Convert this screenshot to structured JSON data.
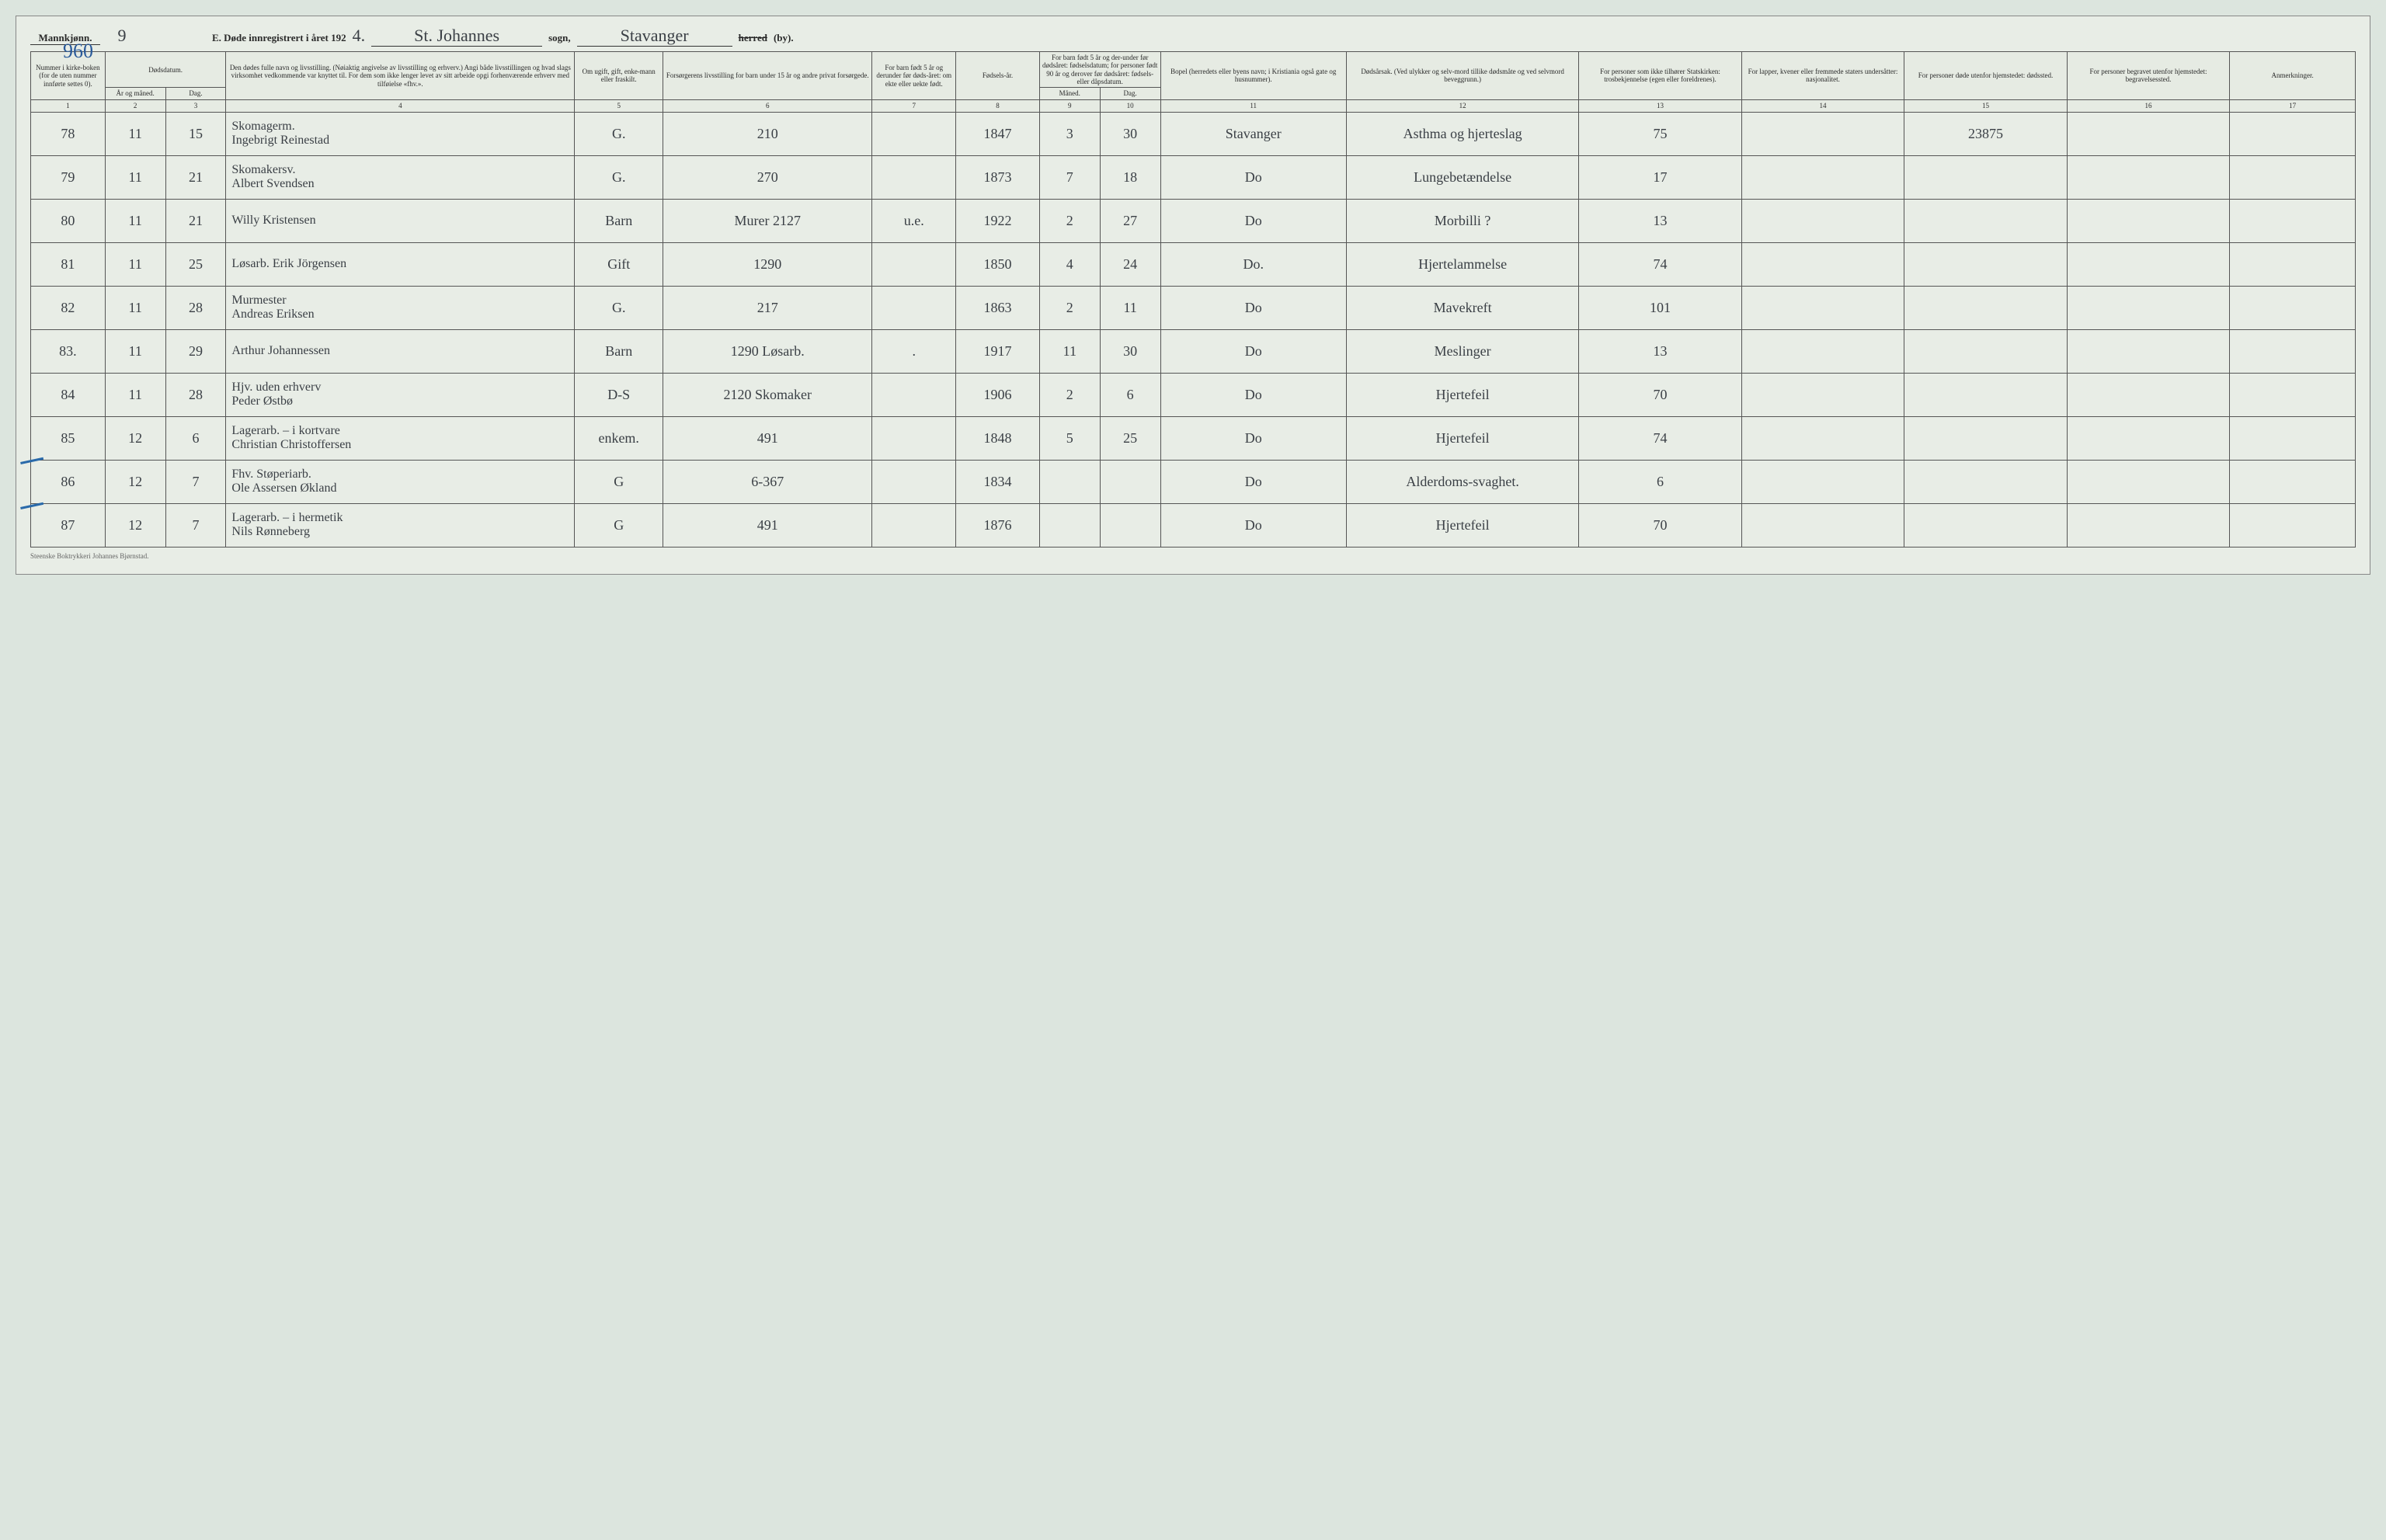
{
  "header": {
    "gender_label": "Mannkjønn.",
    "sheet_number": "9",
    "page_number": "960",
    "title_prefix": "E.  Døde innregistrert i året 192",
    "year_suffix": "4.",
    "parish_label_after": "sogn,",
    "parish": "St. Johannes",
    "district": "Stavanger",
    "herred_label": "herred",
    "by_label": "(by)."
  },
  "columns": {
    "c1": "Nummer i kirke-boken (for de uten nummer innførte settes 0).",
    "c2a": "Dødsdatum.",
    "c2_year": "År og måned.",
    "c2_day": "Dag.",
    "c4": "Den dødes fulle navn og livsstilling. (Nøiaktig angivelse av livsstilling og erhverv.) Angi både livsstillingen og hvad slags virksomhet vedkommende var knyttet til. For dem som ikke lenger levet av sitt arbeide opgi forhenværende erhverv med tilføielse «fhv.».",
    "c5": "Om ugift, gift, enke-mann eller fraskilt.",
    "c6": "Forsørgerens livsstilling for barn under 15 år og andre privat forsørgede.",
    "c7": "For barn født 5 år og derunder før døds-året: om ekte eller uekte født.",
    "c8": "Fødsels-år.",
    "c9_10": "For barn født 5 år og der-under før dødsåret: fødselsdatum; for personer født 90 år og derover før dødsåret: fødsels- eller dåpsdatum.",
    "c9": "Måned.",
    "c10": "Dag.",
    "c11": "Bopel (herredets eller byens navn; i Kristiania også gate og husnummer).",
    "c12": "Dødsårsak. (Ved ulykker og selv-mord tillike dødsmåte og ved selvmord beveggrunn.)",
    "c13": "For personer som ikke tilhører Statskirken: trosbekjennelse (egen eller foreldrenes).",
    "c14": "For lapper, kvener eller fremmede staters undersåtter: nasjonalitet.",
    "c15": "For personer døde utenfor hjemstedet: dødssted.",
    "c16": "For personer begravet utenfor hjemstedet: begravelsessted.",
    "c17": "Anmerkninger."
  },
  "colnums": [
    "1",
    "2",
    "3",
    "4",
    "5",
    "6",
    "7",
    "8",
    "9",
    "10",
    "11",
    "12",
    "13",
    "14",
    "15",
    "16",
    "17"
  ],
  "rows": [
    {
      "no": "78",
      "mon": "11",
      "day": "15",
      "name": "Skomagerm.\nIngebrigt Reinestad",
      "status": "G.",
      "provider": "210",
      "legit": "",
      "byear": "1847",
      "bmon": "3",
      "bday": "30",
      "place": "Stavanger",
      "cause": "Asthma og hjerteslag",
      "col13": "75",
      "col14": "",
      "col15": "23875",
      "col16": "",
      "col17": ""
    },
    {
      "no": "79",
      "mon": "11",
      "day": "21",
      "name": "Skomakersv.\nAlbert Svendsen",
      "status": "G.",
      "provider": "270",
      "legit": "",
      "byear": "1873",
      "bmon": "7",
      "bday": "18",
      "place": "Do",
      "cause": "Lungebetændelse",
      "col13": "17",
      "col14": "",
      "col15": "",
      "col16": "",
      "col17": ""
    },
    {
      "no": "80",
      "mon": "11",
      "day": "21",
      "name": "Willy Kristensen",
      "status": "Barn",
      "provider": "Murer  2127",
      "legit": "u.e.",
      "byear": "1922",
      "bmon": "2",
      "bday": "27",
      "place": "Do",
      "cause": "Morbilli ?",
      "col13": "13",
      "col14": "",
      "col15": "",
      "col16": "",
      "col17": ""
    },
    {
      "no": "81",
      "mon": "11",
      "day": "25",
      "name": "Løsarb. Erik Jörgensen",
      "status": "Gift",
      "provider": "1290",
      "legit": "",
      "byear": "1850",
      "bmon": "4",
      "bday": "24",
      "place": "Do.",
      "cause": "Hjertelammelse",
      "col13": "74",
      "col14": "",
      "col15": "",
      "col16": "",
      "col17": ""
    },
    {
      "no": "82",
      "mon": "11",
      "day": "28",
      "name": "Murmester\nAndreas Eriksen",
      "status": "G.",
      "provider": "217",
      "legit": "",
      "byear": "1863",
      "bmon": "2",
      "bday": "11",
      "place": "Do",
      "cause": "Mavekreft",
      "col13": "101",
      "col14": "",
      "col15": "",
      "col16": "",
      "col17": ""
    },
    {
      "no": "83.",
      "mon": "11",
      "day": "29",
      "name": "Arthur Johannessen",
      "status": "Barn",
      "provider": "1290 Løsarb.",
      "legit": ".",
      "byear": "1917",
      "bmon": "11",
      "bday": "30",
      "place": "Do",
      "cause": "Meslinger",
      "col13": "13",
      "col14": "",
      "col15": "",
      "col16": "",
      "col17": ""
    },
    {
      "no": "84",
      "mon": "11",
      "day": "28",
      "name": "Hjv. uden erhverv\nPeder Østbø",
      "status": "D-S",
      "provider": "2120 Skomaker",
      "legit": "",
      "byear": "1906",
      "bmon": "2",
      "bday": "6",
      "place": "Do",
      "cause": "Hjertefeil",
      "col13": "70",
      "col14": "",
      "col15": "",
      "col16": "",
      "col17": ""
    },
    {
      "no": "85",
      "mon": "12",
      "day": "6",
      "name": "Lagerarb. – i kortvare\nChristian Christoffersen",
      "status": "enkem.",
      "provider": "491",
      "legit": "",
      "byear": "1848",
      "bmon": "5",
      "bday": "25",
      "place": "Do",
      "cause": "Hjertefeil",
      "col13": "74",
      "col14": "",
      "col15": "",
      "col16": "",
      "col17": ""
    },
    {
      "no": "86",
      "mon": "12",
      "day": "7",
      "name": "Fhv. Støperiarb.\nOle Assersen Økland",
      "status": "G",
      "provider": "6-367",
      "legit": "",
      "byear": "1834",
      "bmon": "",
      "bday": "",
      "place": "Do",
      "cause": "Alderdoms-svaghet.",
      "col13": "6",
      "col14": "",
      "col15": "",
      "col16": "",
      "col17": ""
    },
    {
      "no": "87",
      "mon": "12",
      "day": "7",
      "name": "Lagerarb. – i hermetik\nNils Rønneberg",
      "status": "G",
      "provider": "491",
      "legit": "",
      "byear": "1876",
      "bmon": "",
      "bday": "",
      "place": "Do",
      "cause": "Hjertefeil",
      "col13": "70",
      "col14": "",
      "col15": "",
      "col16": "",
      "col17": ""
    }
  ],
  "footer": "Steenske Boktrykkeri Johannes Bjørnstad.",
  "widths": {
    "c1": "3.2%",
    "c2": "2.6%",
    "c3": "2.6%",
    "c4": "15%",
    "c5": "3.8%",
    "c6": "9%",
    "c7": "3.6%",
    "c8": "3.6%",
    "c9": "2.6%",
    "c10": "2.6%",
    "c11": "8%",
    "c12": "10%",
    "c13": "7%",
    "c14": "7%",
    "c15": "7%",
    "c16": "7%",
    "c17": "5.4%"
  }
}
